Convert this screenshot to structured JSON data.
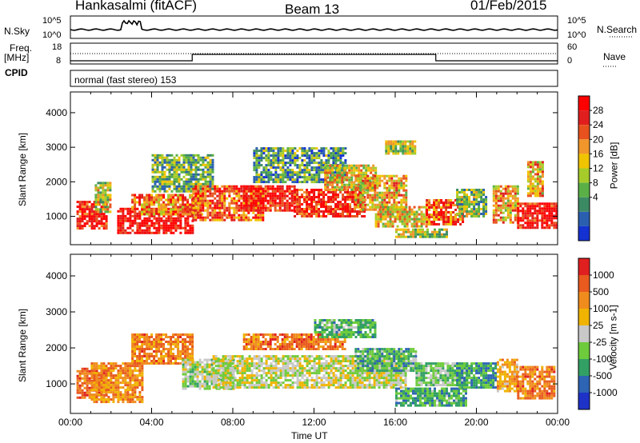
{
  "header": {
    "station": "Hankasalmi (fitACF)",
    "beam": "Beam 13",
    "date": "01/Feb/2015"
  },
  "top_panels": {
    "nsky_label": "N.Sky",
    "nsky_ticks": [
      "10^5",
      "10^0"
    ],
    "nsearch_label": "N.Search",
    "nsearch_ticks": [
      "10^5",
      "10^0"
    ],
    "freq_label": "Freq.",
    "freq_unit": "[MHz]",
    "freq_ticks": [
      "18",
      "8"
    ],
    "nave_label": "Nave",
    "nave_ticks": [
      "60",
      "0"
    ],
    "cpid_label": "CPID",
    "cpid_text": "normal (fast stereo) 153"
  },
  "chart_data": [
    {
      "type": "heatmap",
      "panel": "power",
      "ylabel": "Slant Range [km]",
      "xlabel": "",
      "x_range_hours": [
        0,
        24
      ],
      "ylim": [
        180,
        4600
      ],
      "yticks": [
        "1000",
        "2000",
        "3000",
        "4000"
      ],
      "colorbar": {
        "label": "Power [dB]",
        "ticks": [
          "28",
          "24",
          "20",
          "16",
          "12",
          "8",
          "4"
        ],
        "colors": [
          "#1432d2",
          "#2a5fb0",
          "#3c8a64",
          "#5ab046",
          "#a6cc2a",
          "#f0c400",
          "#f0962a",
          "#e8521e",
          "#e01e1e",
          "#ff0000"
        ]
      },
      "regions": [
        {
          "x": [
            0.3,
            1.8
          ],
          "y": [
            650,
            1450
          ],
          "level": 0.9
        },
        {
          "x": [
            1.2,
            2.0
          ],
          "y": [
            1100,
            2000
          ],
          "level": 0.5
        },
        {
          "x": [
            2.3,
            6.0
          ],
          "y": [
            500,
            1250
          ],
          "level": 0.95
        },
        {
          "x": [
            3.0,
            6.5
          ],
          "y": [
            1050,
            1650
          ],
          "level": 0.7
        },
        {
          "x": [
            4.0,
            7.0
          ],
          "y": [
            1700,
            2800
          ],
          "level": 0.35
        },
        {
          "x": [
            6.0,
            9.5
          ],
          "y": [
            900,
            1900
          ],
          "level": 0.75
        },
        {
          "x": [
            8.5,
            11.0
          ],
          "y": [
            1200,
            1900
          ],
          "level": 0.9
        },
        {
          "x": [
            11.0,
            14.5
          ],
          "y": [
            1000,
            1800
          ],
          "level": 0.88
        },
        {
          "x": [
            9.0,
            13.5
          ],
          "y": [
            2000,
            3000
          ],
          "level": 0.3
        },
        {
          "x": [
            12.5,
            15.0
          ],
          "y": [
            1800,
            2500
          ],
          "level": 0.55
        },
        {
          "x": [
            14.0,
            16.5
          ],
          "y": [
            1200,
            2200
          ],
          "level": 0.6
        },
        {
          "x": [
            15.5,
            17.0
          ],
          "y": [
            2800,
            3200
          ],
          "level": 0.45
        },
        {
          "x": [
            15.0,
            17.5
          ],
          "y": [
            700,
            1300
          ],
          "level": 0.55
        },
        {
          "x": [
            16.0,
            18.5
          ],
          "y": [
            400,
            650
          ],
          "level": 0.45
        },
        {
          "x": [
            17.5,
            19.3
          ],
          "y": [
            800,
            1500
          ],
          "level": 0.75
        },
        {
          "x": [
            19.0,
            20.5
          ],
          "y": [
            1000,
            1800
          ],
          "level": 0.4
        },
        {
          "x": [
            20.8,
            22.0
          ],
          "y": [
            800,
            1900
          ],
          "level": 0.6
        },
        {
          "x": [
            22.0,
            23.9
          ],
          "y": [
            700,
            1400
          ],
          "level": 0.92
        },
        {
          "x": [
            22.5,
            23.3
          ],
          "y": [
            1600,
            2600
          ],
          "level": 0.6
        }
      ]
    },
    {
      "type": "heatmap",
      "panel": "velocity",
      "ylabel": "Slant Range [km]",
      "xlabel": "Time UT",
      "x_range_hours": [
        0,
        24
      ],
      "xticks": [
        "00:00",
        "04:00",
        "08:00",
        "12:00",
        "16:00",
        "20:00",
        "00:00"
      ],
      "ylim": [
        180,
        4600
      ],
      "yticks": [
        "1000",
        "2000",
        "3000",
        "4000"
      ],
      "colorbar": {
        "label": "Velocity [m s-1]",
        "ticks": [
          "1000",
          "500",
          "100",
          "25",
          "-25",
          "-100",
          "-500",
          "-1000"
        ],
        "colors": [
          "#1e32c8",
          "#2e64b4",
          "#32a064",
          "#6ecb3c",
          "#c8c8c8",
          "#f0b400",
          "#f08c1e",
          "#e85a1e",
          "#e02020"
        ]
      },
      "regions": [
        {
          "x": [
            0.3,
            1.8
          ],
          "y": [
            600,
            1450
          ],
          "level": -0.6
        },
        {
          "x": [
            1.0,
            3.5
          ],
          "y": [
            500,
            1600
          ],
          "level": -0.45
        },
        {
          "x": [
            3.0,
            6.0
          ],
          "y": [
            1600,
            2400
          ],
          "level": -0.5
        },
        {
          "x": [
            5.5,
            8.0
          ],
          "y": [
            900,
            1700
          ],
          "level": 0.1
        },
        {
          "x": [
            7.0,
            16.5
          ],
          "y": [
            900,
            1800
          ],
          "level": 0.0
        },
        {
          "x": [
            8.5,
            13.5
          ],
          "y": [
            2000,
            2400
          ],
          "level": -0.55
        },
        {
          "x": [
            12.0,
            15.0
          ],
          "y": [
            2300,
            2800
          ],
          "level": 0.3
        },
        {
          "x": [
            14.0,
            17.0
          ],
          "y": [
            1400,
            2000
          ],
          "level": 0.35
        },
        {
          "x": [
            16.0,
            19.5
          ],
          "y": [
            400,
            900
          ],
          "level": 0.4
        },
        {
          "x": [
            17.0,
            19.5
          ],
          "y": [
            1000,
            1600
          ],
          "level": 0.25
        },
        {
          "x": [
            19.0,
            21.0
          ],
          "y": [
            900,
            1600
          ],
          "level": 0.45
        },
        {
          "x": [
            21.0,
            22.0
          ],
          "y": [
            800,
            1700
          ],
          "level": -0.3
        },
        {
          "x": [
            22.0,
            23.8
          ],
          "y": [
            600,
            1500
          ],
          "level": -0.55
        }
      ]
    }
  ]
}
